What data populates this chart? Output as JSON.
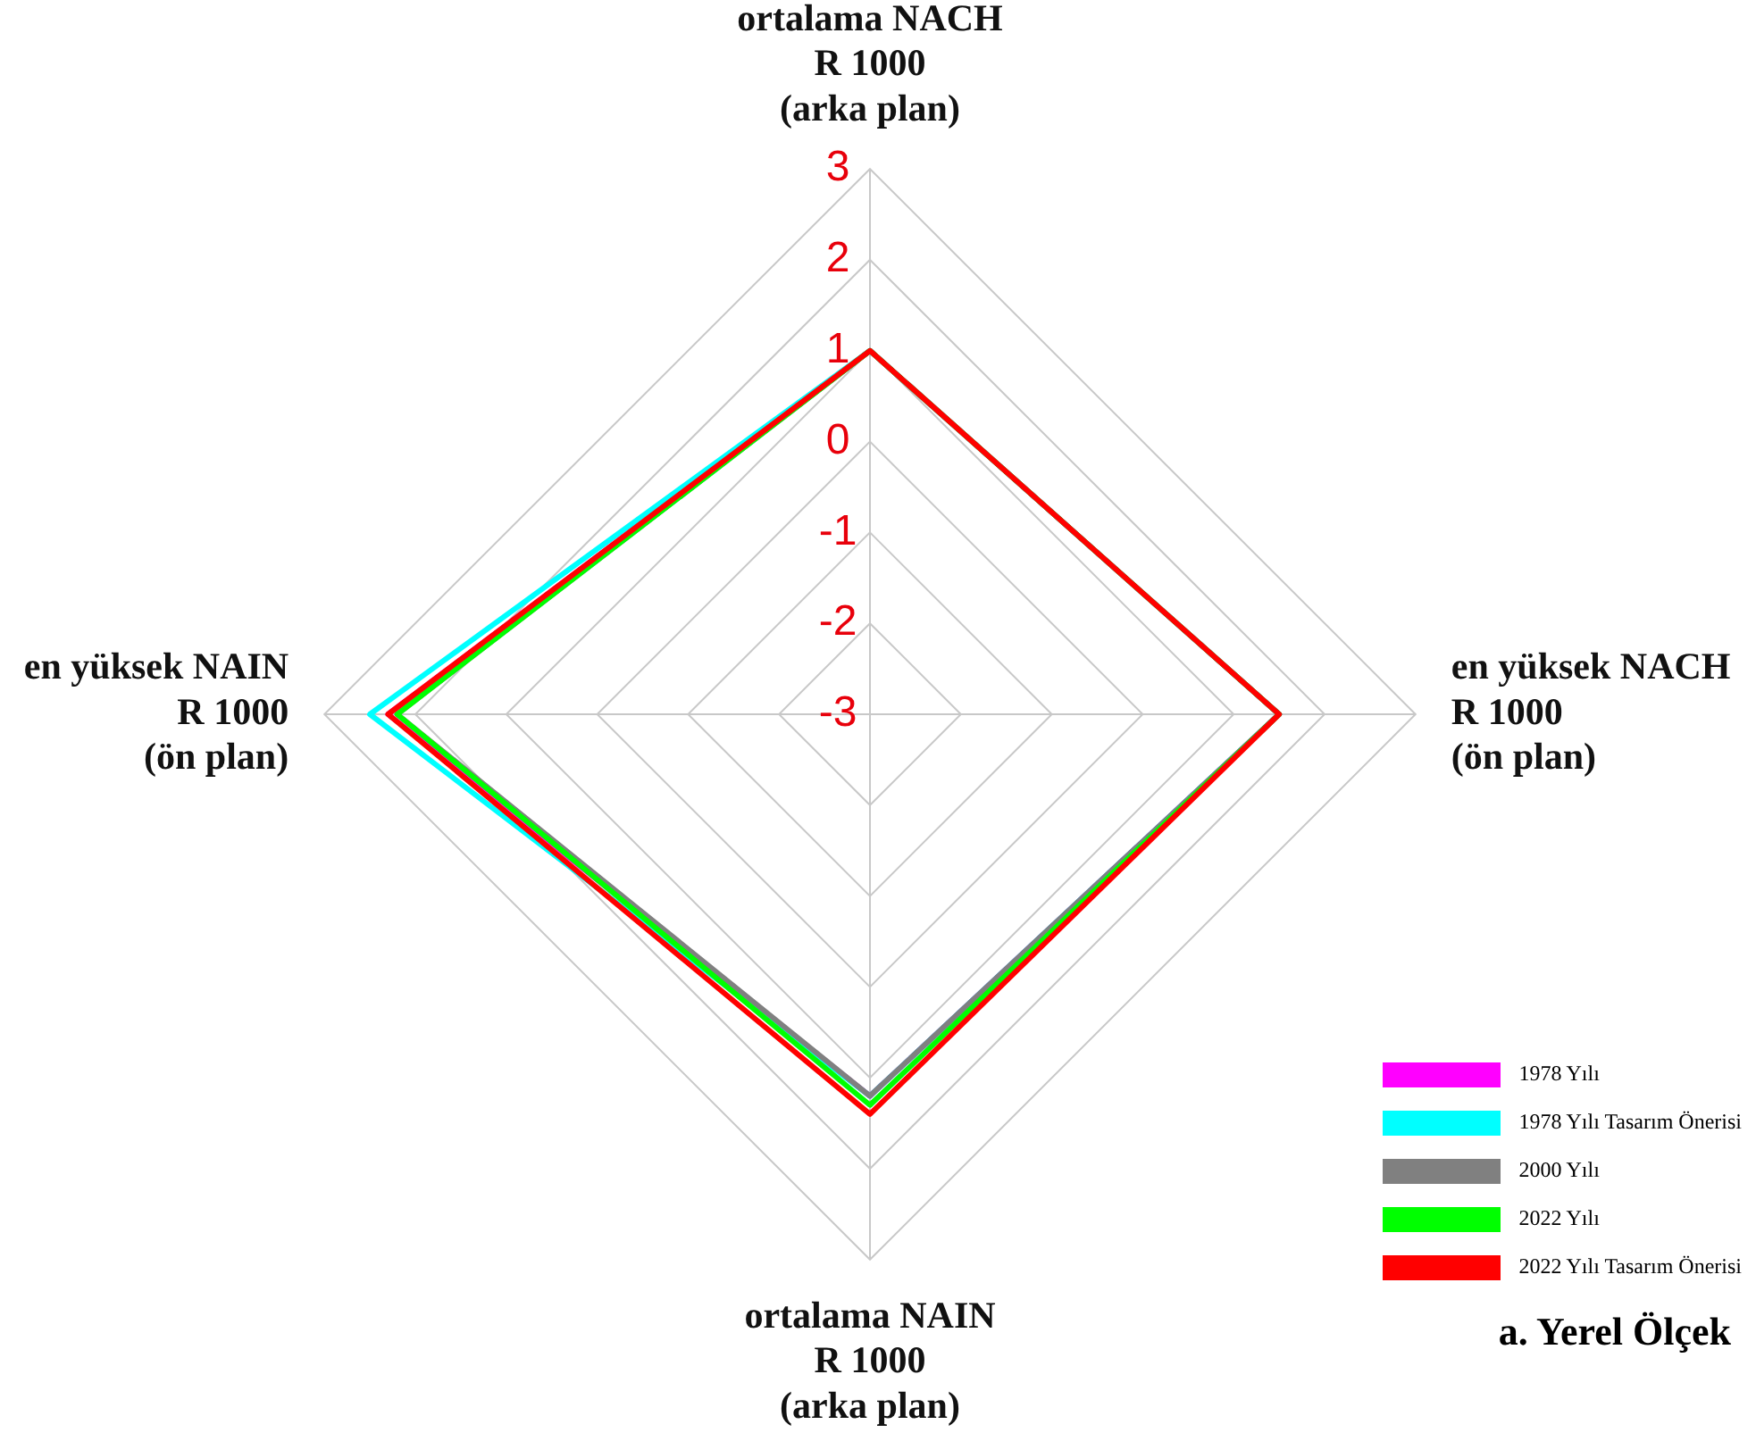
{
  "chart_data": {
    "type": "radar",
    "categories": [
      "ortalama NACH\nR 1000\n(arka plan)",
      "en yüksek NACH\nR 1000\n(ön plan)",
      "ortalama NAIN\nR 1000\n(arka plan)",
      "en yüksek NAIN\nR 1000\n(ön plan)"
    ],
    "ylim": [
      -3,
      3
    ],
    "yticks": [
      -3,
      -2,
      -1,
      0,
      1,
      2,
      3
    ],
    "grid": true,
    "legend": "bottom right",
    "marker": "none",
    "line_style": "solid",
    "series": [
      {
        "name": "1978 Yılı",
        "color": "#ff00ff",
        "values": [
          1.0,
          1.5,
          1.2,
          2.3
        ]
      },
      {
        "name": "1978 Yılı Tasarım Önerisi",
        "color": "#00ffff",
        "values": [
          1.0,
          1.5,
          1.2,
          2.5
        ]
      },
      {
        "name": "2000 Yılı",
        "color": "#808080",
        "values": [
          1.0,
          1.5,
          1.2,
          2.2
        ]
      },
      {
        "name": "2022 Yılı",
        "color": "#00ff00",
        "values": [
          1.0,
          1.5,
          1.3,
          2.2
        ]
      },
      {
        "name": "2022 Yılı Tasarım Önerisi",
        "color": "#ff0000",
        "values": [
          1.0,
          1.5,
          1.4,
          2.3
        ]
      }
    ],
    "annotations": [
      "a. Yerel Ölçek"
    ]
  }
}
